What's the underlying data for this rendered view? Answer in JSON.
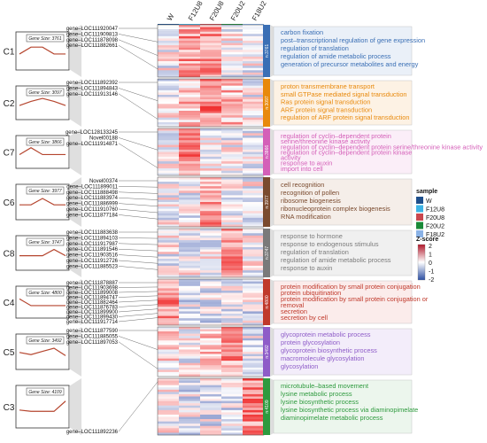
{
  "samples": [
    "W",
    "F12U8",
    "F20U8",
    "F20U2",
    "F18U2"
  ],
  "sample_colors": [
    "#1e4f8c",
    "#3db4e6",
    "#c9474e",
    "#1a8a38",
    "#8ab2e6"
  ],
  "legend": {
    "sample_title": "sample",
    "zscore_title": "Z-score",
    "zscore_ticks": [
      "2",
      "1",
      "0",
      "-1",
      "-2"
    ]
  },
  "clusters": [
    {
      "id": "C1",
      "gene_size": "Gene Size: 3761",
      "n": "n:3761",
      "color": "#3a6fb5",
      "bg": "#eaf0f8",
      "profile": [
        0.55,
        0.25,
        0.25,
        0.55,
        0.55
      ],
      "genes": [
        "gene–LOC111920047",
        "gene–LOC111909813",
        "gene–LOC111878098",
        "gene–LOC111882661"
      ],
      "terms": [
        "carbon fixation",
        "post–transcriptional regulation of gene expression",
        "regulation of translation",
        "regulation of amide metabolic process",
        "generation of precursor metabolites and energy"
      ]
    },
    {
      "id": "C2",
      "gene_size": "Gene Size: 3097",
      "n": "n:3097",
      "color": "#e8890c",
      "bg": "#fdf2e4",
      "profile": [
        0.55,
        0.35,
        0.2,
        0.35,
        0.55
      ],
      "genes": [
        "gene–LOC111892392",
        "gene–LOC111894843",
        "gene–LOC111913146"
      ],
      "terms": [
        "proton transmembrane transport",
        "small GTPase mediated signal transduction",
        "Ras protein signal transduction",
        "ARF protein signal transduction",
        "regulation of ARF protein signal transduction"
      ]
    },
    {
      "id": "C7",
      "gene_size": "Gene Size: 3866",
      "n": "n:3866",
      "color": "#d45fb8",
      "bg": "#fbeef8",
      "profile": [
        0.55,
        0.2,
        0.55,
        0.55,
        0.55
      ],
      "genes": [
        "gene–LOC128133245",
        "Novel00188",
        "gene–LOC111914871"
      ],
      "terms": [
        "regulation of cyclin–dependent protein",
        "serine/threonine kinase activity",
        "regulation of cyclin–dependent protein serine/threonine kinase activity",
        "regulation of cyclin–dependent protein kinase",
        "activity",
        "response to auxin",
        "import into cell"
      ]
    },
    {
      "id": "C6",
      "gene_size": "Gene Size: 3977",
      "n": "n:3977",
      "color": "#7a4a2e",
      "bg": "#f5eee9",
      "profile": [
        0.55,
        0.55,
        0.25,
        0.55,
        0.55
      ],
      "genes": [
        "Novel00374",
        "gene–LOC111899011",
        "gene–LOC111888498",
        "gene–LOC111883974",
        "gene–LOC111886999",
        "gene–LOC111910760",
        "gene–LOC111877184"
      ],
      "terms": [
        "cell recognition",
        "recognition of pollen",
        "ribosome biogenesis",
        "ribonucleoprotein complex biogenesis",
        "RNA modification"
      ]
    },
    {
      "id": "C8",
      "gene_size": "Gene Size: 3747",
      "n": "n:3747",
      "color": "#7a7a7a",
      "bg": "#f0f0f0",
      "profile": [
        0.55,
        0.55,
        0.55,
        0.25,
        0.55
      ],
      "genes": [
        "gene–LOC111883638",
        "gene–LOC111894103",
        "gene–LOC111917987",
        "gene–LOC111891546",
        "gene–LOC111903516",
        "gene–LOC111912726",
        "gene–LOC111885523"
      ],
      "terms": [
        "response to hormone",
        "response to endogenous stimulus",
        "regulation of translation",
        "regulation of amide metabolic process",
        "response to auxin"
      ]
    },
    {
      "id": "C4",
      "gene_size": "Gene Size: 4800",
      "n": "n:4800",
      "color": "#c0392b",
      "bg": "#fbeceb",
      "profile": [
        0.25,
        0.6,
        0.6,
        0.6,
        0.6
      ],
      "genes": [
        "gene–LOC111878887",
        "gene–LOC111903698",
        "gene–LOC111899008",
        "gene–LOC111894747",
        "gene–LOC111882464",
        "gene–LOC111876783",
        "gene–LOC111899900",
        "gene–LOC111899430",
        "gene–LOC111917714"
      ],
      "terms": [
        "protein modification by small protein conjugation",
        "protein ubiquitination",
        "protein modification by small protein conjugation or",
        "removal",
        "secretion",
        "secretion by cell"
      ]
    },
    {
      "id": "C5",
      "gene_size": "Gene Size: 3492",
      "n": "n:3492",
      "color": "#8e5cc8",
      "bg": "#f3edfa",
      "profile": [
        0.45,
        0.55,
        0.4,
        0.25,
        0.6
      ],
      "genes": [
        "gene–LOC111877590",
        "gene–LOC111885055",
        "gene–LOC111897053"
      ],
      "terms": [
        "glycoprotein metabolic process",
        "protein glycosylation",
        "glycoprotein biosynthetic process",
        "macromolecule glycosylation",
        "glycosylation"
      ]
    },
    {
      "id": "C3",
      "gene_size": "Gene Size: 4109",
      "n": "n:4109",
      "color": "#2e9a3e",
      "bg": "#ecf6ed",
      "profile": [
        0.55,
        0.6,
        0.6,
        0.6,
        0.2
      ],
      "genes": [
        "gene–LOC111892236"
      ],
      "terms": [
        "microtubule–based movement",
        "lysine metabolic process",
        "lysine biosynthetic process",
        "lysine biosynthetic process via diaminopimelate",
        "diaminopimelate metabolic process"
      ]
    }
  ]
}
